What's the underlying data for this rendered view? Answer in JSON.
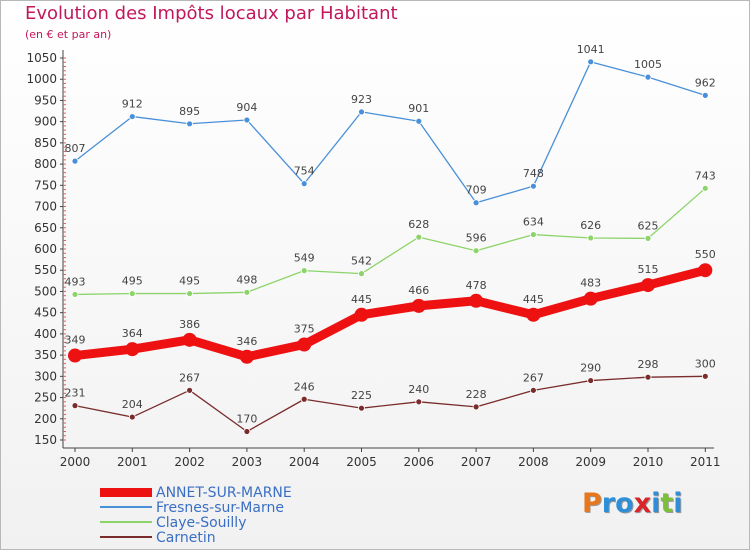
{
  "title": "Evolution des Impôts locaux par Habitant",
  "subtitle": "(en € et par an)",
  "brand": {
    "letters": [
      "P",
      "r",
      "o",
      "x",
      "i",
      "t",
      "i"
    ],
    "colors": [
      "#e8761c",
      "#2e8fd8",
      "#2e8fd8",
      "#d8252a",
      "#2e8fd8",
      "#7cbf3a",
      "#2e8fd8"
    ]
  },
  "chart_data": {
    "type": "line",
    "categories": [
      "2000",
      "2001",
      "2002",
      "2003",
      "2004",
      "2005",
      "2006",
      "2007",
      "2008",
      "2009",
      "2010",
      "2011"
    ],
    "ylim": [
      150,
      1050
    ],
    "yticks": [
      150,
      200,
      250,
      300,
      350,
      400,
      450,
      500,
      550,
      600,
      650,
      700,
      750,
      800,
      850,
      900,
      950,
      1000,
      1050
    ],
    "grid": false,
    "legend_position": "bottom-left",
    "series": [
      {
        "name": "ANNET-SUR-MARNE",
        "values": [
          349,
          364,
          386,
          346,
          375,
          445,
          466,
          478,
          445,
          483,
          515,
          550
        ],
        "color": "#ee1111",
        "bold": true
      },
      {
        "name": "Fresnes-sur-Marne",
        "values": [
          807,
          912,
          895,
          904,
          754,
          923,
          901,
          709,
          748,
          1041,
          1005,
          962
        ],
        "color": "#4a90d9",
        "bold": false
      },
      {
        "name": "Claye-Souilly",
        "values": [
          493,
          495,
          495,
          498,
          549,
          542,
          628,
          596,
          634,
          626,
          625,
          743
        ],
        "color": "#8cd46a",
        "bold": false
      },
      {
        "name": "Carnetin",
        "values": [
          231,
          204,
          267,
          170,
          246,
          225,
          240,
          228,
          267,
          290,
          298,
          300
        ],
        "color": "#7a2c2c",
        "bold": false
      }
    ]
  }
}
